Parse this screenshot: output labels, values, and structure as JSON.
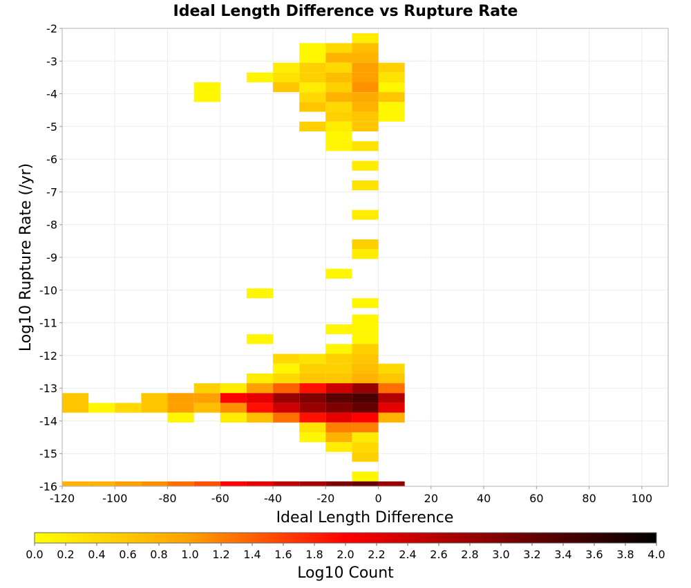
{
  "chart_data": {
    "type": "heatmap",
    "title": "Ideal Length Difference vs Rupture Rate",
    "xlabel": "Ideal Length Difference",
    "ylabel": "Log10 Rupture Rate (/yr)",
    "xlim": [
      -120,
      110
    ],
    "ylim": [
      -16,
      -2
    ],
    "xticks": [
      -120,
      -100,
      -80,
      -60,
      -40,
      -20,
      0,
      20,
      40,
      60,
      80,
      100
    ],
    "yticks": [
      -2,
      -3,
      -4,
      -5,
      -6,
      -7,
      -8,
      -9,
      -10,
      -11,
      -12,
      -13,
      -14,
      -15,
      -16
    ],
    "grid": true,
    "bin_width_x": 10,
    "bin_height_y": 0.3,
    "colorbar": {
      "label": "Log10 Count",
      "min": 0.0,
      "max": 4.0,
      "ticks": [
        "0.0",
        "0.2",
        "0.4",
        "0.6",
        "0.8",
        "1.0",
        "1.2",
        "1.4",
        "1.6",
        "1.8",
        "2.0",
        "2.2",
        "2.4",
        "2.6",
        "2.8",
        "3.0",
        "3.2",
        "3.4",
        "3.6",
        "3.8",
        "4.0"
      ],
      "colors": [
        "#ffff00",
        "#ffa000",
        "#ff0000",
        "#800000",
        "#000000"
      ]
    },
    "cells": [
      {
        "x": -10,
        "y": -2.3,
        "v": 0.2
      },
      {
        "x": -30,
        "y": -2.6,
        "v": 0.1
      },
      {
        "x": -20,
        "y": -2.6,
        "v": 0.4
      },
      {
        "x": -10,
        "y": -2.6,
        "v": 0.7
      },
      {
        "x": -30,
        "y": -2.9,
        "v": 0.1
      },
      {
        "x": -20,
        "y": -2.9,
        "v": 0.8
      },
      {
        "x": -10,
        "y": -2.9,
        "v": 0.8
      },
      {
        "x": -40,
        "y": -3.2,
        "v": 0.2
      },
      {
        "x": -30,
        "y": -3.2,
        "v": 0.5
      },
      {
        "x": -20,
        "y": -3.2,
        "v": 0.4
      },
      {
        "x": -10,
        "y": -3.2,
        "v": 1.0
      },
      {
        "x": 0,
        "y": -3.2,
        "v": 0.5
      },
      {
        "x": -50,
        "y": -3.5,
        "v": 0.1
      },
      {
        "x": -40,
        "y": -3.5,
        "v": 0.3
      },
      {
        "x": -30,
        "y": -3.5,
        "v": 0.5
      },
      {
        "x": -20,
        "y": -3.5,
        "v": 0.7
      },
      {
        "x": -10,
        "y": -3.5,
        "v": 1.0
      },
      {
        "x": 0,
        "y": -3.5,
        "v": 0.3
      },
      {
        "x": -40,
        "y": -3.8,
        "v": 0.6
      },
      {
        "x": -30,
        "y": -3.8,
        "v": 0.2
      },
      {
        "x": -20,
        "y": -3.8,
        "v": 0.5
      },
      {
        "x": -10,
        "y": -3.8,
        "v": 1.1
      },
      {
        "x": 0,
        "y": -3.8,
        "v": 0.1
      },
      {
        "x": -70,
        "y": -3.8,
        "v": 0.1
      },
      {
        "x": -70,
        "y": -4.1,
        "v": 0.1
      },
      {
        "x": -30,
        "y": -4.1,
        "v": 0.4
      },
      {
        "x": -20,
        "y": -4.1,
        "v": 0.8
      },
      {
        "x": -10,
        "y": -4.1,
        "v": 0.9
      },
      {
        "x": 0,
        "y": -4.1,
        "v": 0.6
      },
      {
        "x": -30,
        "y": -4.4,
        "v": 0.6
      },
      {
        "x": -20,
        "y": -4.4,
        "v": 0.4
      },
      {
        "x": -10,
        "y": -4.4,
        "v": 0.8
      },
      {
        "x": 0,
        "y": -4.4,
        "v": 0.1
      },
      {
        "x": -20,
        "y": -4.7,
        "v": 0.5
      },
      {
        "x": -10,
        "y": -4.7,
        "v": 0.6
      },
      {
        "x": 0,
        "y": -4.7,
        "v": 0.1
      },
      {
        "x": -30,
        "y": -5.0,
        "v": 0.5
      },
      {
        "x": -20,
        "y": -5.0,
        "v": 0.2
      },
      {
        "x": -10,
        "y": -5.0,
        "v": 0.6
      },
      {
        "x": -20,
        "y": -5.3,
        "v": 0.1
      },
      {
        "x": -20,
        "y": -5.6,
        "v": 0.1
      },
      {
        "x": -10,
        "y": -5.6,
        "v": 0.3
      },
      {
        "x": -10,
        "y": -6.2,
        "v": 0.2
      },
      {
        "x": -10,
        "y": -6.8,
        "v": 0.3
      },
      {
        "x": -10,
        "y": -7.7,
        "v": 0.2
      },
      {
        "x": -10,
        "y": -8.6,
        "v": 0.5
      },
      {
        "x": -10,
        "y": -8.9,
        "v": 0.2
      },
      {
        "x": -20,
        "y": -9.5,
        "v": 0.1
      },
      {
        "x": -50,
        "y": -10.1,
        "v": 0.1
      },
      {
        "x": -10,
        "y": -10.4,
        "v": 0.1
      },
      {
        "x": -10,
        "y": -10.9,
        "v": 0.1
      },
      {
        "x": -20,
        "y": -11.2,
        "v": 0.1
      },
      {
        "x": -10,
        "y": -11.2,
        "v": 0.1
      },
      {
        "x": -50,
        "y": -11.5,
        "v": 0.1
      },
      {
        "x": -10,
        "y": -11.5,
        "v": 0.1
      },
      {
        "x": -20,
        "y": -11.8,
        "v": 0.1
      },
      {
        "x": -10,
        "y": -11.8,
        "v": 0.5
      },
      {
        "x": -40,
        "y": -12.1,
        "v": 0.4
      },
      {
        "x": -30,
        "y": -12.1,
        "v": 0.3
      },
      {
        "x": -20,
        "y": -12.1,
        "v": 0.5
      },
      {
        "x": -10,
        "y": -12.1,
        "v": 0.6
      },
      {
        "x": -40,
        "y": -12.4,
        "v": 0.1
      },
      {
        "x": -30,
        "y": -12.4,
        "v": 0.5
      },
      {
        "x": -20,
        "y": -12.4,
        "v": 0.5
      },
      {
        "x": -10,
        "y": -12.4,
        "v": 0.7
      },
      {
        "x": 0,
        "y": -12.4,
        "v": 0.4
      },
      {
        "x": -50,
        "y": -12.7,
        "v": 0.2
      },
      {
        "x": -40,
        "y": -12.7,
        "v": 0.4
      },
      {
        "x": -30,
        "y": -12.7,
        "v": 0.6
      },
      {
        "x": -20,
        "y": -12.7,
        "v": 0.6
      },
      {
        "x": -10,
        "y": -12.7,
        "v": 0.8
      },
      {
        "x": 0,
        "y": -12.7,
        "v": 0.6
      },
      {
        "x": -70,
        "y": -13.0,
        "v": 0.5
      },
      {
        "x": -60,
        "y": -13.0,
        "v": 0.2
      },
      {
        "x": -50,
        "y": -13.0,
        "v": 1.0
      },
      {
        "x": -40,
        "y": -13.0,
        "v": 1.4
      },
      {
        "x": -30,
        "y": -13.0,
        "v": 1.9
      },
      {
        "x": -20,
        "y": -13.0,
        "v": 2.4
      },
      {
        "x": -10,
        "y": -13.0,
        "v": 2.8
      },
      {
        "x": 0,
        "y": -13.0,
        "v": 1.3
      },
      {
        "x": -120,
        "y": -13.3,
        "v": 0.6
      },
      {
        "x": -90,
        "y": -13.3,
        "v": 0.6
      },
      {
        "x": -80,
        "y": -13.3,
        "v": 1.0
      },
      {
        "x": -70,
        "y": -13.3,
        "v": 1.0
      },
      {
        "x": -60,
        "y": -13.3,
        "v": 2.0
      },
      {
        "x": -50,
        "y": -13.3,
        "v": 2.2
      },
      {
        "x": -40,
        "y": -13.3,
        "v": 2.8
      },
      {
        "x": -30,
        "y": -13.3,
        "v": 3.0
      },
      {
        "x": -20,
        "y": -13.3,
        "v": 3.3
      },
      {
        "x": -10,
        "y": -13.3,
        "v": 3.4
      },
      {
        "x": 0,
        "y": -13.3,
        "v": 2.6
      },
      {
        "x": -120,
        "y": -13.6,
        "v": 0.6
      },
      {
        "x": -110,
        "y": -13.6,
        "v": 0.1
      },
      {
        "x": -100,
        "y": -13.6,
        "v": 0.4
      },
      {
        "x": -90,
        "y": -13.6,
        "v": 0.6
      },
      {
        "x": -80,
        "y": -13.6,
        "v": 1.0
      },
      {
        "x": -70,
        "y": -13.6,
        "v": 0.7
      },
      {
        "x": -60,
        "y": -13.6,
        "v": 1.1
      },
      {
        "x": -50,
        "y": -13.6,
        "v": 1.9
      },
      {
        "x": -40,
        "y": -13.6,
        "v": 2.4
      },
      {
        "x": -30,
        "y": -13.6,
        "v": 2.8
      },
      {
        "x": -20,
        "y": -13.6,
        "v": 3.0
      },
      {
        "x": -10,
        "y": -13.6,
        "v": 3.2
      },
      {
        "x": 0,
        "y": -13.6,
        "v": 2.2
      },
      {
        "x": -80,
        "y": -13.9,
        "v": 0.1
      },
      {
        "x": -60,
        "y": -13.9,
        "v": 0.2
      },
      {
        "x": -50,
        "y": -13.9,
        "v": 0.7
      },
      {
        "x": -40,
        "y": -13.9,
        "v": 1.3
      },
      {
        "x": -30,
        "y": -13.9,
        "v": 1.9
      },
      {
        "x": -20,
        "y": -13.9,
        "v": 2.2
      },
      {
        "x": -10,
        "y": -13.9,
        "v": 2.0
      },
      {
        "x": 0,
        "y": -13.9,
        "v": 0.8
      },
      {
        "x": -30,
        "y": -14.2,
        "v": 0.3
      },
      {
        "x": -20,
        "y": -14.2,
        "v": 1.2
      },
      {
        "x": -10,
        "y": -14.2,
        "v": 1.2
      },
      {
        "x": -30,
        "y": -14.5,
        "v": 0.1
      },
      {
        "x": -20,
        "y": -14.5,
        "v": 0.8
      },
      {
        "x": -10,
        "y": -14.5,
        "v": 0.2
      },
      {
        "x": -20,
        "y": -14.8,
        "v": 0.2
      },
      {
        "x": -10,
        "y": -14.8,
        "v": 0.4
      },
      {
        "x": -10,
        "y": -15.1,
        "v": 0.5
      },
      {
        "x": -10,
        "y": -15.7,
        "v": 0.1
      },
      {
        "x": -120,
        "y": -16.0,
        "v": 0.8
      },
      {
        "x": -110,
        "y": -16.0,
        "v": 0.8
      },
      {
        "x": -100,
        "y": -16.0,
        "v": 1.0
      },
      {
        "x": -90,
        "y": -16.0,
        "v": 1.1
      },
      {
        "x": -80,
        "y": -16.0,
        "v": 1.3
      },
      {
        "x": -70,
        "y": -16.0,
        "v": 1.5
      },
      {
        "x": -60,
        "y": -16.0,
        "v": 2.0
      },
      {
        "x": -50,
        "y": -16.0,
        "v": 2.2
      },
      {
        "x": -40,
        "y": -16.0,
        "v": 2.5
      },
      {
        "x": -30,
        "y": -16.0,
        "v": 2.7
      },
      {
        "x": -20,
        "y": -16.0,
        "v": 3.0
      },
      {
        "x": -10,
        "y": -16.0,
        "v": 3.2
      },
      {
        "x": 0,
        "y": -16.0,
        "v": 2.8
      }
    ]
  }
}
